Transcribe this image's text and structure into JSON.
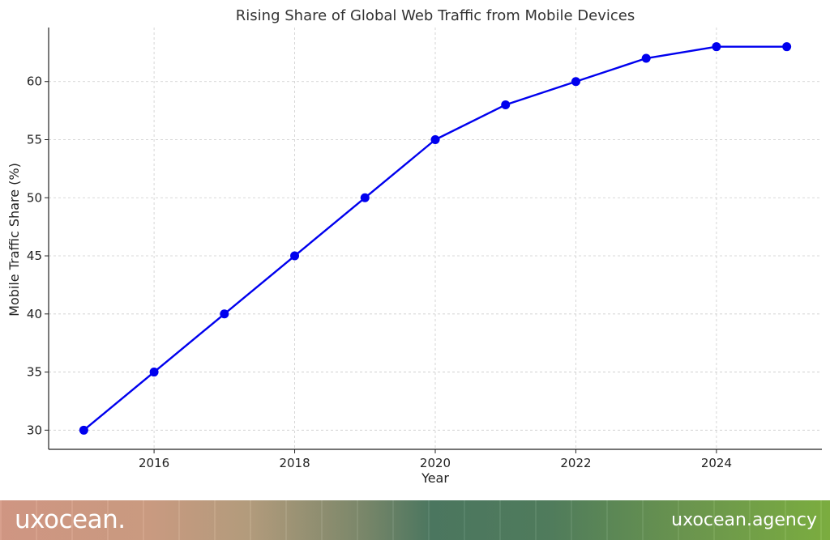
{
  "chart_data": {
    "type": "line",
    "title": "Rising Share of Global Web Traffic from Mobile Devices",
    "xlabel": "Year",
    "ylabel": "Mobile Traffic Share (%)",
    "x": [
      2015,
      2016,
      2017,
      2018,
      2019,
      2020,
      2021,
      2022,
      2023,
      2024,
      2025
    ],
    "series": [
      {
        "values": [
          30,
          35,
          40,
          45,
          50,
          55,
          58,
          60,
          62,
          63,
          63
        ],
        "color": "#0000ee"
      }
    ],
    "xticks": [
      2016,
      2018,
      2020,
      2022,
      2024
    ],
    "yticks": [
      30,
      35,
      40,
      45,
      50,
      55,
      60
    ],
    "xlim": [
      2014.5,
      2025.5
    ],
    "ylim": [
      28.35,
      64.65
    ],
    "grid": true,
    "grid_color": "#cccccc",
    "axis_color": "#222222"
  },
  "branding": {
    "logo_text": "uxocean.",
    "url_text": "uxocean.agency"
  }
}
